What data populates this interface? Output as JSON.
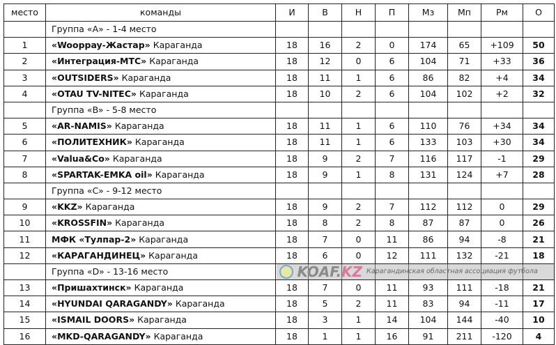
{
  "headers": [
    "место",
    "команды",
    "И",
    "В",
    "Н",
    "П",
    "Мз",
    "Мп",
    "Рм",
    "О"
  ],
  "groups": [
    {
      "label": "Группа «A»  -  1-4 место",
      "rows": [
        {
          "place": "1",
          "team": "«Wooppay-Жастар»",
          "city": "Караганда",
          "i": "18",
          "w": "16",
          "d": "2",
          "l": "0",
          "gf": "174",
          "ga": "65",
          "gd": "+109",
          "pts": "50"
        },
        {
          "place": "2",
          "team": "«Интеграция-МТС»",
          "city": "Караганда",
          "i": "18",
          "w": "12",
          "d": "0",
          "l": "6",
          "gf": "104",
          "ga": "71",
          "gd": "+33",
          "pts": "36"
        },
        {
          "place": "3",
          "team": "«OUTSIDERS»",
          "city": "Караганда",
          "i": "18",
          "w": "11",
          "d": "1",
          "l": "6",
          "gf": "86",
          "ga": "82",
          "gd": "+4",
          "pts": "34"
        },
        {
          "place": "4",
          "team": "«OTAU TV-NITEC»",
          "city": "Караганда",
          "i": "18",
          "w": "10",
          "d": "2",
          "l": "6",
          "gf": "104",
          "ga": "102",
          "gd": "+2",
          "pts": "32"
        }
      ]
    },
    {
      "label": "Группа «B»  -  5-8 место",
      "rows": [
        {
          "place": "5",
          "team": "«AR-NAMIS»",
          "city": "Караганда",
          "i": "18",
          "w": "11",
          "d": "1",
          "l": "6",
          "gf": "110",
          "ga": "76",
          "gd": "+34",
          "pts": "34"
        },
        {
          "place": "6",
          "team": "«ПОЛИТЕХНИК»",
          "city": "Караганда",
          "i": "18",
          "w": "11",
          "d": "1",
          "l": "6",
          "gf": "133",
          "ga": "103",
          "gd": "+30",
          "pts": "34"
        },
        {
          "place": "7",
          "team": "«Valua&Co»",
          "city": "Караганда",
          "i": "18",
          "w": "9",
          "d": "2",
          "l": "7",
          "gf": "116",
          "ga": "117",
          "gd": "-1",
          "pts": "29"
        },
        {
          "place": "8",
          "team": "«SPARTAK-EMKA oil»",
          "city": "Караганда",
          "i": "18",
          "w": "9",
          "d": "1",
          "l": "8",
          "gf": "131",
          "ga": "124",
          "gd": "+7",
          "pts": "28"
        }
      ]
    },
    {
      "label": "Группа «C»  - 9-12 место",
      "rows": [
        {
          "place": "9",
          "team": "«KKZ»",
          "city": "Караганда",
          "i": "18",
          "w": "9",
          "d": "2",
          "l": "7",
          "gf": "112",
          "ga": "112",
          "gd": "0",
          "pts": "29"
        },
        {
          "place": "10",
          "team": "«KROSSFIN»",
          "city": "Караганда",
          "i": "18",
          "w": "8",
          "d": "2",
          "l": "8",
          "gf": "87",
          "ga": "87",
          "gd": "0",
          "pts": "26"
        },
        {
          "place": "11",
          "team": "МФК «Тулпар-2»",
          "city": "Караганда",
          "i": "18",
          "w": "7",
          "d": "0",
          "l": "11",
          "gf": "86",
          "ga": "94",
          "gd": "-8",
          "pts": "21"
        },
        {
          "place": "12",
          "team": "«КАРАГАНДИНЕЦ»",
          "city": "Караганда",
          "i": "18",
          "w": "6",
          "d": "0",
          "l": "12",
          "gf": "111",
          "ga": "132",
          "gd": "-21",
          "pts": "18"
        }
      ]
    },
    {
      "label": "Группа «D»  - 13-16 место",
      "rows": [
        {
          "place": "13",
          "team": "«Пришахтинск»",
          "city": "Караганда",
          "i": "18",
          "w": "7",
          "d": "0",
          "l": "11",
          "gf": "93",
          "ga": "111",
          "gd": "-18",
          "pts": "21"
        },
        {
          "place": "14",
          "team": "«HYUNDAI QARAGANDY»",
          "city": "Караганда",
          "i": "18",
          "w": "5",
          "d": "2",
          "l": "11",
          "gf": "83",
          "ga": "94",
          "gd": "-11",
          "pts": "17"
        },
        {
          "place": "15",
          "team": "«ISMAIL DOORS»",
          "city": "Караганда",
          "i": "18",
          "w": "3",
          "d": "1",
          "l": "14",
          "gf": "104",
          "ga": "144",
          "gd": "-40",
          "pts": "10"
        },
        {
          "place": "16",
          "team": "«MKD-QARAGANDY»",
          "city": "Караганда",
          "i": "18",
          "w": "1",
          "d": "1",
          "l": "16",
          "gf": "91",
          "ga": "211",
          "gd": "-120",
          "pts": "4"
        }
      ]
    }
  ],
  "watermark": {
    "brand_a": "KOAF.",
    "brand_b": "KZ",
    "subtitle": "Карагандинская областная ассоциация футбола"
  }
}
